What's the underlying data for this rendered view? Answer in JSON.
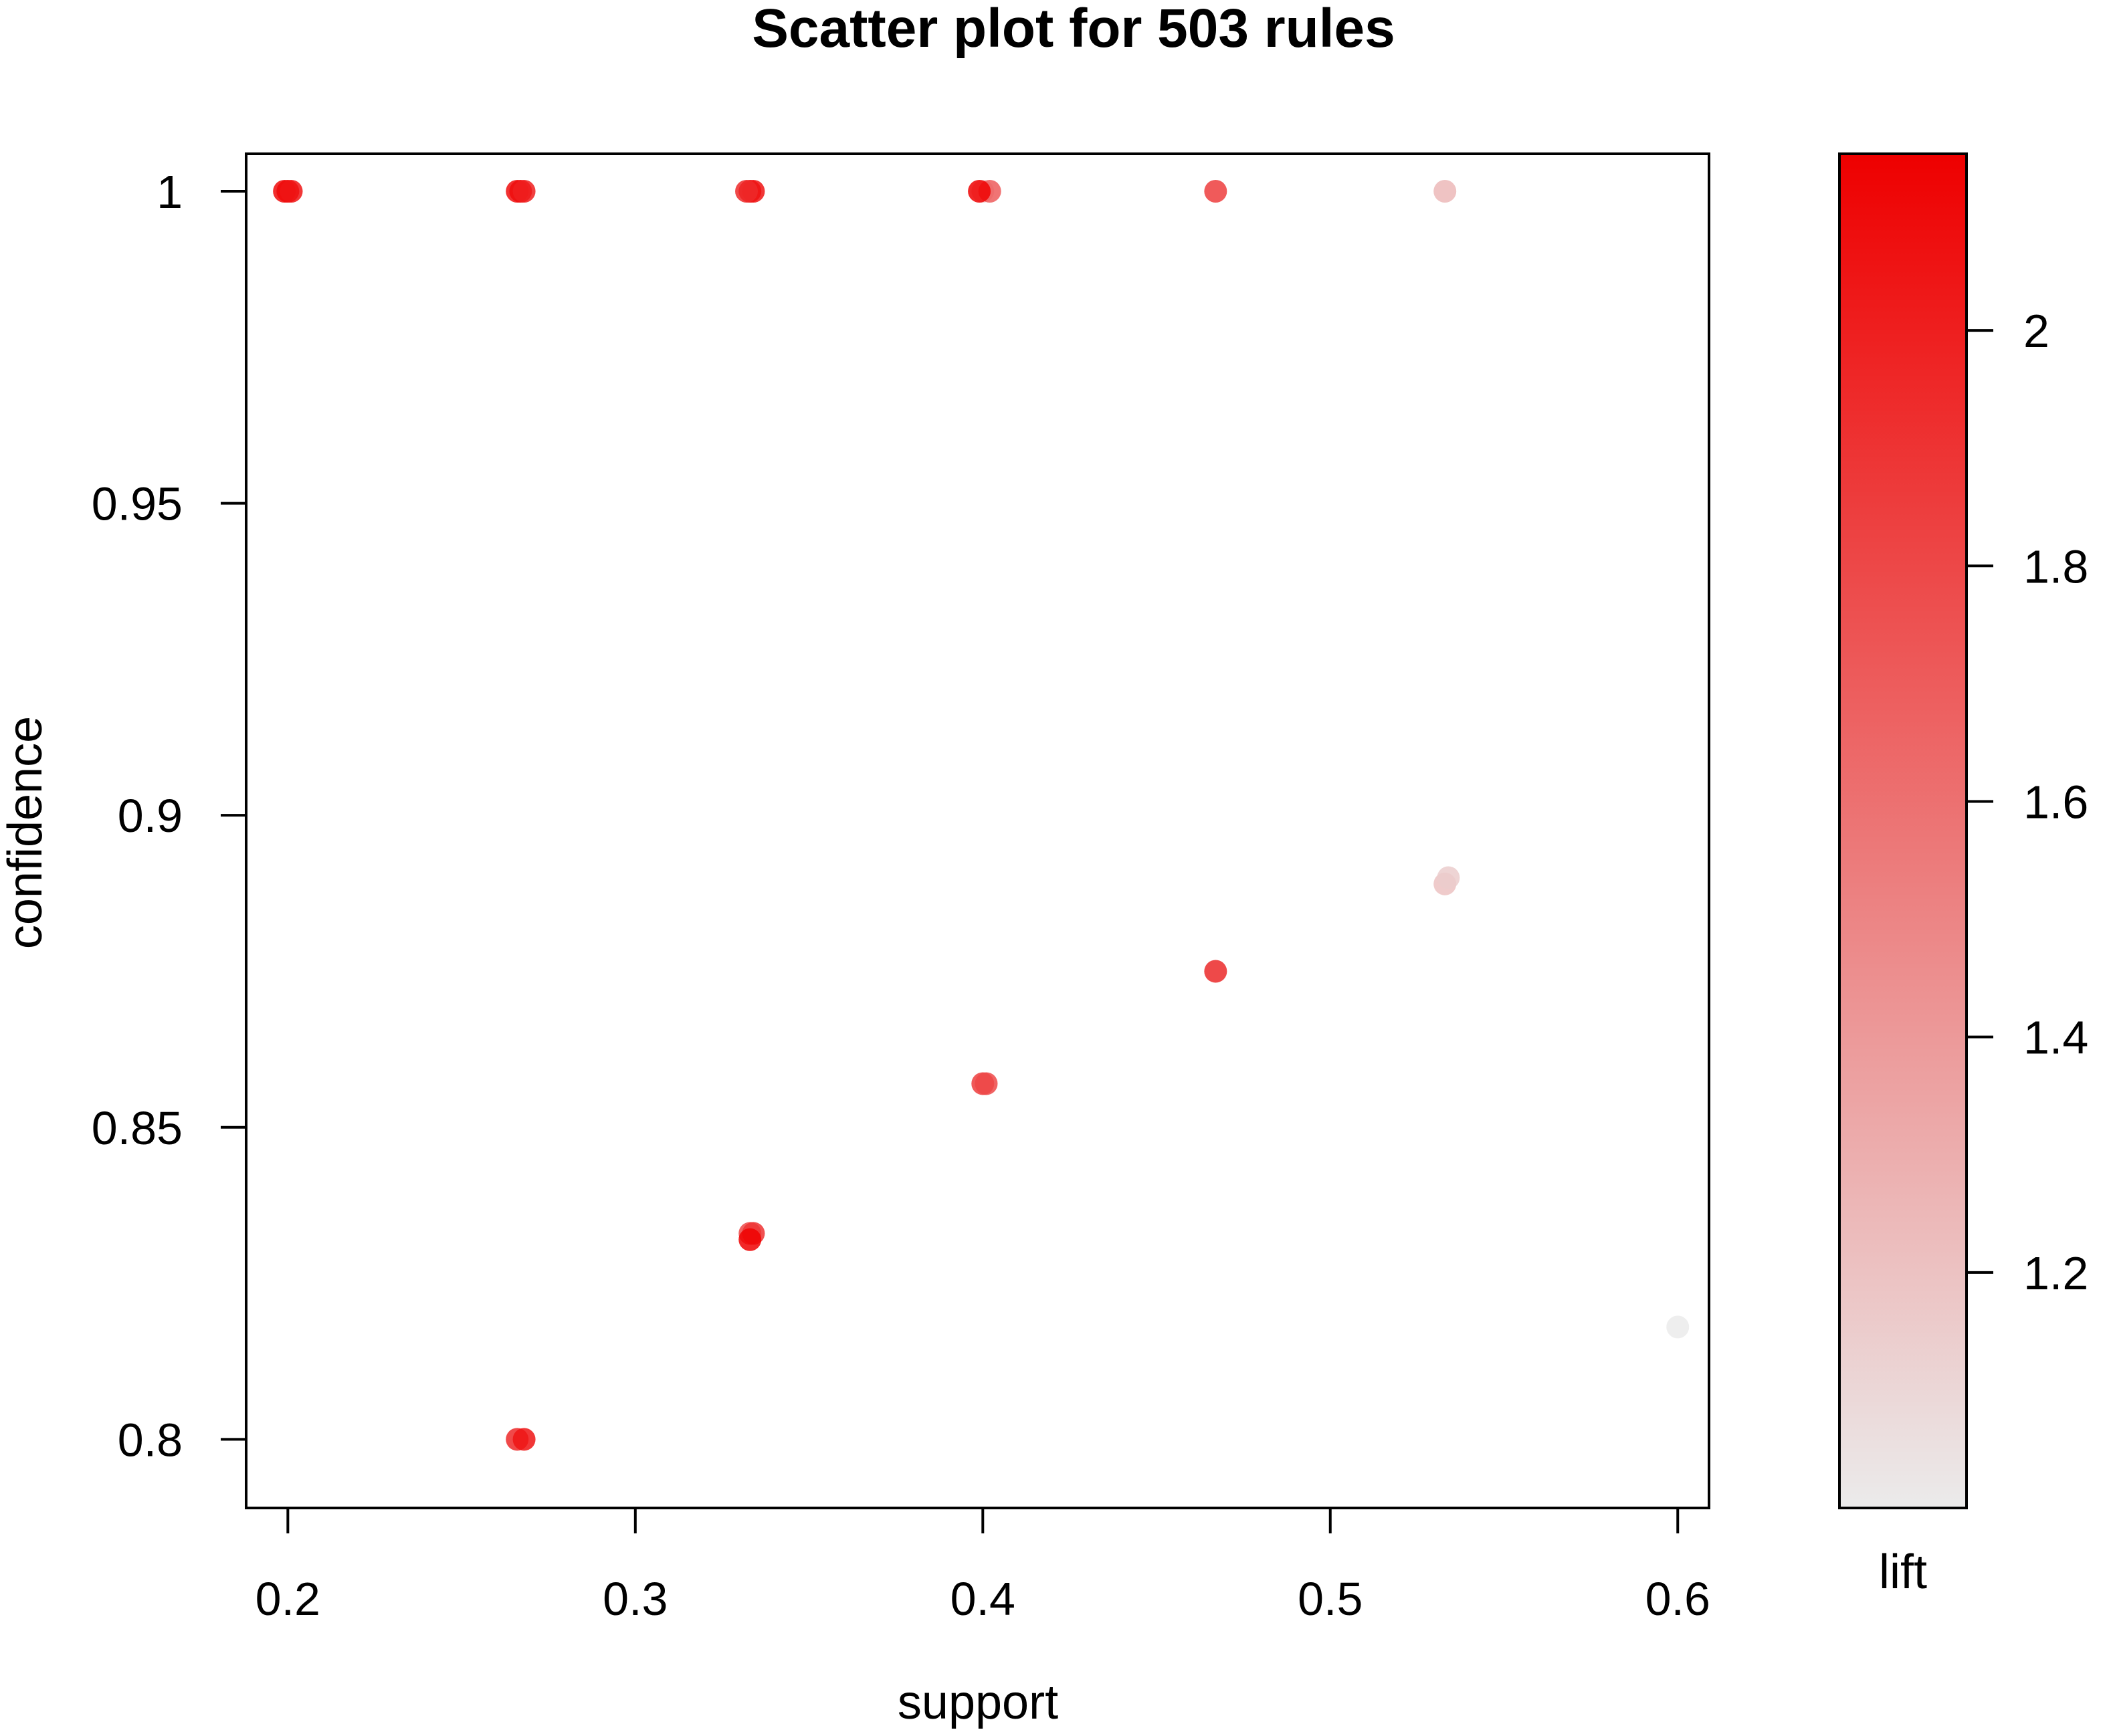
{
  "chart_data": {
    "type": "scatter",
    "title": "Scatter plot for 503 rules",
    "xlabel": "support",
    "ylabel": "confidence",
    "xlim": [
      0.188,
      0.609
    ],
    "ylim": [
      0.789,
      1.006
    ],
    "xticks": [
      "0.2",
      "0.3",
      "0.4",
      "0.5",
      "0.6"
    ],
    "yticks": [
      "0.8",
      "0.85",
      "0.9",
      "0.95",
      "1"
    ],
    "colorbar": {
      "label": "lift",
      "range": [
        1.0,
        2.15
      ],
      "ticks": [
        "1.2",
        "1.4",
        "1.6",
        "1.8",
        "2"
      ],
      "color_low": "#ebebeb",
      "color_high": "#ee0000"
    },
    "grid": false,
    "points": [
      {
        "x": 0.2,
        "y": 1.0,
        "lift": 2.14
      },
      {
        "x": 0.199,
        "y": 1.0,
        "lift": 2.1
      },
      {
        "x": 0.201,
        "y": 1.0,
        "lift": 2.05
      },
      {
        "x": 0.267,
        "y": 1.0,
        "lift": 2.14
      },
      {
        "x": 0.266,
        "y": 1.0,
        "lift": 2.08
      },
      {
        "x": 0.268,
        "y": 1.0,
        "lift": 2.0
      },
      {
        "x": 0.333,
        "y": 1.0,
        "lift": 2.14
      },
      {
        "x": 0.334,
        "y": 1.0,
        "lift": 2.05
      },
      {
        "x": 0.332,
        "y": 1.0,
        "lift": 1.95
      },
      {
        "x": 0.4,
        "y": 1.0,
        "lift": 1.2
      },
      {
        "x": 0.402,
        "y": 1.0,
        "lift": 1.7
      },
      {
        "x": 0.399,
        "y": 1.0,
        "lift": 2.14
      },
      {
        "x": 0.467,
        "y": 1.0,
        "lift": 1.85
      },
      {
        "x": 0.533,
        "y": 1.0,
        "lift": 1.25
      },
      {
        "x": 0.533,
        "y": 0.889,
        "lift": 1.2
      },
      {
        "x": 0.534,
        "y": 0.89,
        "lift": 1.15
      },
      {
        "x": 0.467,
        "y": 0.875,
        "lift": 1.2
      },
      {
        "x": 0.467,
        "y": 0.875,
        "lift": 1.9
      },
      {
        "x": 0.4,
        "y": 0.857,
        "lift": 1.85
      },
      {
        "x": 0.401,
        "y": 0.857,
        "lift": 1.8
      },
      {
        "x": 0.333,
        "y": 0.833,
        "lift": 1.8
      },
      {
        "x": 0.334,
        "y": 0.833,
        "lift": 1.9
      },
      {
        "x": 0.333,
        "y": 0.832,
        "lift": 2.14
      },
      {
        "x": 0.266,
        "y": 0.8,
        "lift": 1.95
      },
      {
        "x": 0.268,
        "y": 0.8,
        "lift": 2.05
      },
      {
        "x": 0.6,
        "y": 0.818,
        "lift": 1.0
      }
    ]
  }
}
